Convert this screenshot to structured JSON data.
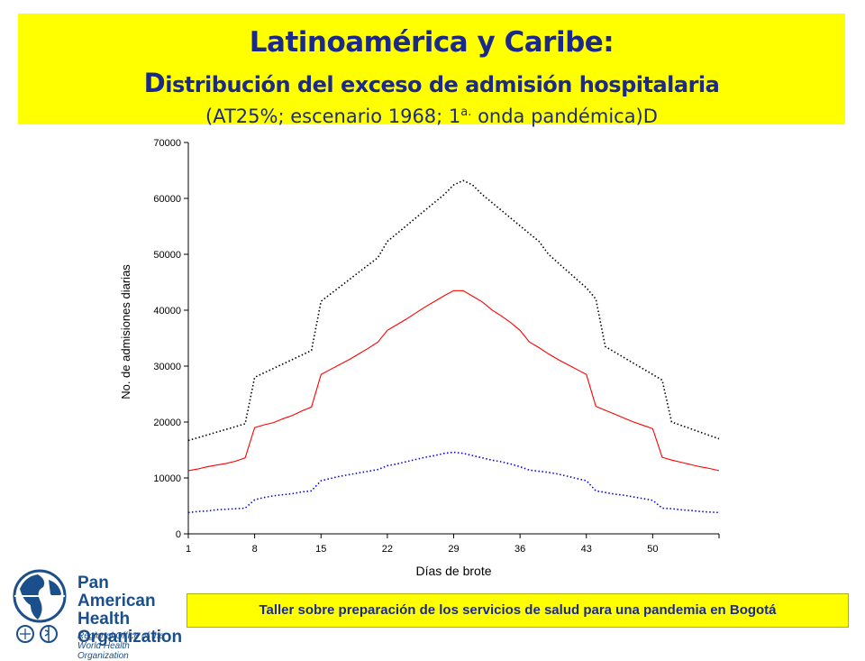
{
  "header": {
    "line1": "Latinoamérica y Caribe:",
    "line2_initial": "D",
    "line2_rest": "istribución del exceso de admisión hospitalaria",
    "line3_pre": "(AT25%; escenario 1968; 1",
    "line3_sup": "a.",
    "line3_post": " onda pandémica)D"
  },
  "footer": {
    "text": "Taller sobre preparación de los servicios de salud para una pandemia en Bogotá"
  },
  "logo": {
    "name_line1": "Pan American",
    "name_line2": "Health",
    "name_line3": "Organization",
    "sub_line1": "Regional Office of the",
    "sub_line2": "World Health Organization"
  },
  "chart_data": {
    "type": "line",
    "xlabel": "Días de brote",
    "ylabel": "No. de admisiones diarias",
    "ylim": [
      0,
      70000
    ],
    "yticks": [
      0,
      10000,
      20000,
      30000,
      40000,
      50000,
      60000,
      70000
    ],
    "xlim": [
      1,
      57
    ],
    "xticks": [
      1,
      8,
      15,
      22,
      29,
      36,
      43,
      50
    ],
    "grid": false,
    "legend": "none",
    "x": [
      1,
      2,
      3,
      4,
      5,
      6,
      7,
      8,
      9,
      10,
      11,
      12,
      13,
      14,
      15,
      16,
      17,
      18,
      19,
      20,
      21,
      22,
      23,
      24,
      25,
      26,
      27,
      28,
      29,
      30,
      31,
      32,
      33,
      34,
      35,
      36,
      37,
      38,
      39,
      40,
      41,
      42,
      43,
      44,
      45,
      46,
      47,
      48,
      49,
      50,
      51,
      52,
      53,
      54,
      55,
      56,
      57
    ],
    "series": [
      {
        "color": "#000000",
        "style": "dotted",
        "values": [
          16700,
          17200,
          17700,
          18200,
          18700,
          19200,
          19700,
          28000,
          28800,
          29600,
          30400,
          31200,
          32000,
          32800,
          41600,
          42900,
          44200,
          45500,
          46800,
          48100,
          49400,
          52300,
          53700,
          55100,
          56500,
          57900,
          59300,
          60700,
          62400,
          63200,
          62400,
          60700,
          59300,
          57900,
          56500,
          55100,
          53700,
          52300,
          50000,
          48500,
          47000,
          45500,
          44000,
          42000,
          33500,
          32500,
          31500,
          30500,
          29500,
          28500,
          27500,
          20000,
          19400,
          18800,
          18200,
          17600,
          17000
        ]
      },
      {
        "color": "#ff0000",
        "style": "solid",
        "values": [
          11300,
          11600,
          12000,
          12300,
          12600,
          13000,
          13600,
          19000,
          19500,
          19900,
          20600,
          21200,
          22000,
          22700,
          28500,
          29400,
          30300,
          31200,
          32200,
          33200,
          34300,
          36400,
          37400,
          38400,
          39500,
          40600,
          41600,
          42600,
          43500,
          43500,
          42500,
          41500,
          40100,
          39000,
          37800,
          36400,
          34300,
          33300,
          32200,
          31200,
          30300,
          29400,
          28500,
          22800,
          22100,
          21400,
          20700,
          20000,
          19400,
          18800,
          13700,
          13200,
          12800,
          12400,
          12000,
          11700,
          11300
        ]
      },
      {
        "color": "#0000ff",
        "style": "dotted",
        "values": [
          3800,
          4000,
          4100,
          4300,
          4400,
          4500,
          4600,
          6100,
          6500,
          6800,
          7000,
          7200,
          7500,
          7700,
          9500,
          9900,
          10300,
          10600,
          10900,
          11200,
          11500,
          12200,
          12500,
          12900,
          13300,
          13700,
          14000,
          14400,
          14600,
          14400,
          14000,
          13600,
          13200,
          12900,
          12500,
          12000,
          11400,
          11200,
          11000,
          10700,
          10300,
          9900,
          9500,
          7700,
          7400,
          7100,
          6900,
          6600,
          6300,
          6000,
          4600,
          4500,
          4300,
          4200,
          4000,
          3900,
          3800
        ]
      }
    ]
  }
}
